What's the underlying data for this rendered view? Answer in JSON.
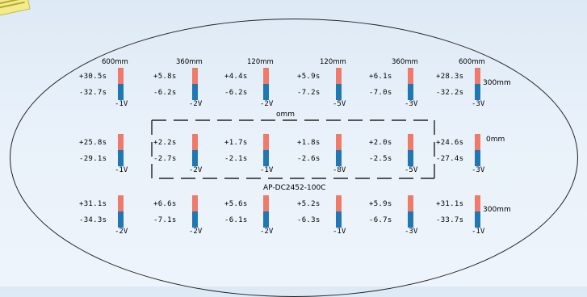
{
  "colors": {
    "positive_bar": "#f07a6a",
    "negative_bar": "#1f78b4"
  },
  "labels": {
    "center_mm": "omm",
    "model": "AP-DC2452-100C",
    "row_top_mm": "300mm",
    "row_mid_mm": "0mm",
    "row_bot_mm": "300mm"
  },
  "rows": [
    [
      {
        "dim": "600mm",
        "pos": "+30.5s",
        "neg": "-32.7s",
        "volt": "-1V"
      },
      {
        "dim": "360mm",
        "pos": "+5.8s",
        "neg": "-6.2s",
        "volt": "-2V"
      },
      {
        "dim": "120mm",
        "pos": "+4.4s",
        "neg": "-6.2s",
        "volt": "-2V"
      },
      {
        "dim": "120mm",
        "pos": "+5.9s",
        "neg": "-7.2s",
        "volt": "-5V"
      },
      {
        "dim": "360mm",
        "pos": "+6.1s",
        "neg": "-7.0s",
        "volt": "-3V"
      },
      {
        "dim": "600mm",
        "pos": "+28.3s",
        "neg": "-32.2s",
        "volt": "-3V"
      }
    ],
    [
      {
        "dim": "",
        "pos": "+25.8s",
        "neg": "-29.1s",
        "volt": "-1V"
      },
      {
        "dim": "",
        "pos": "+2.2s",
        "neg": "-2.7s",
        "volt": "-2V"
      },
      {
        "dim": "",
        "pos": "+1.7s",
        "neg": "-2.1s",
        "volt": "-1V"
      },
      {
        "dim": "",
        "pos": "+1.8s",
        "neg": "-2.6s",
        "volt": "-8V"
      },
      {
        "dim": "",
        "pos": "+2.0s",
        "neg": "-2.5s",
        "volt": "-5V"
      },
      {
        "dim": "",
        "pos": "+24.6s",
        "neg": "-27.4s",
        "volt": "-3V"
      }
    ],
    [
      {
        "dim": "",
        "pos": "+31.1s",
        "neg": "-34.3s",
        "volt": "-2V"
      },
      {
        "dim": "",
        "pos": "+6.6s",
        "neg": "-7.1s",
        "volt": "-2V"
      },
      {
        "dim": "",
        "pos": "+5.6s",
        "neg": "-6.1s",
        "volt": "-2V"
      },
      {
        "dim": "",
        "pos": "+5.2s",
        "neg": "-6.3s",
        "volt": "-1V"
      },
      {
        "dim": "",
        "pos": "+5.9s",
        "neg": "-6.7s",
        "volt": "-3V"
      },
      {
        "dim": "",
        "pos": "+31.1s",
        "neg": "-33.7s",
        "volt": "-1V"
      }
    ]
  ]
}
